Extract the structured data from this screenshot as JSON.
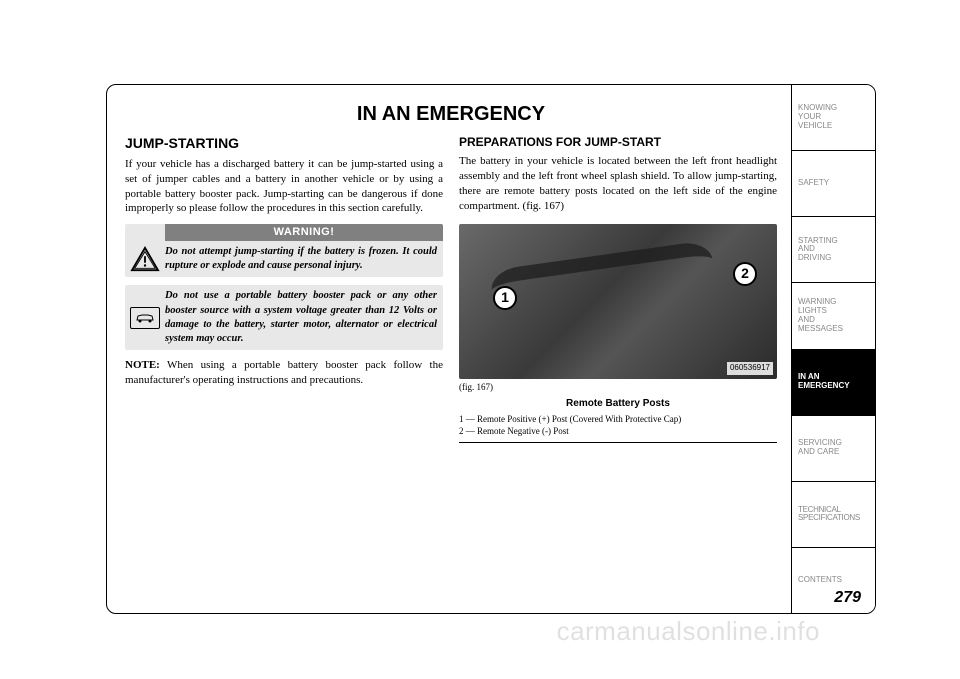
{
  "title": "IN AN EMERGENCY",
  "left": {
    "heading": "JUMP-STARTING",
    "intro": "If your vehicle has a discharged battery it can be jump-started using a set of jumper cables and a battery in another vehicle or by using a portable battery booster pack. Jump-starting can be dangerous if done improperly so please follow the procedures in this section carefully.",
    "warning_header": "WARNING!",
    "warning_text": "Do not attempt jump-starting if the battery is frozen. It could rupture or explode and cause personal injury.",
    "caution_text": "Do not use a portable battery booster pack or any other booster source with a system voltage greater than 12 Volts or damage to the battery, starter motor, alternator or electrical system may occur.",
    "note_label": "NOTE:",
    "note_text": " When using a portable battery booster pack follow the manufacturer's operating instructions and precautions."
  },
  "right": {
    "heading": "PREPARATIONS FOR JUMP-START",
    "intro": "The battery in your vehicle is located between the left front headlight assembly and the left front wheel splash shield. To allow jump-starting, there are remote battery posts located on the left side of the engine compartment. (fig. 167)",
    "callout1": "1",
    "callout2": "2",
    "img_code": "060536917",
    "fig_num": "(fig. 167)",
    "fig_title": "Remote Battery Posts",
    "legend1": "1 — Remote Positive (+) Post (Covered With Protective Cap)",
    "legend2": "2 — Remote Negative (-) Post"
  },
  "tabs": [
    "KNOWING\nYOUR\nVEHICLE",
    "SAFETY",
    "STARTING\nAND\nDRIVING",
    "WARNING\nLIGHTS\nAND\nMESSAGES",
    "IN AN\nEMERGENCY",
    "SERVICING\nAND CARE",
    "TECHNICAL\nSPECIFICATIONS",
    "CONTENTS"
  ],
  "active_tab_index": 4,
  "page_number": "279",
  "watermark": "carmanualsonline.info"
}
